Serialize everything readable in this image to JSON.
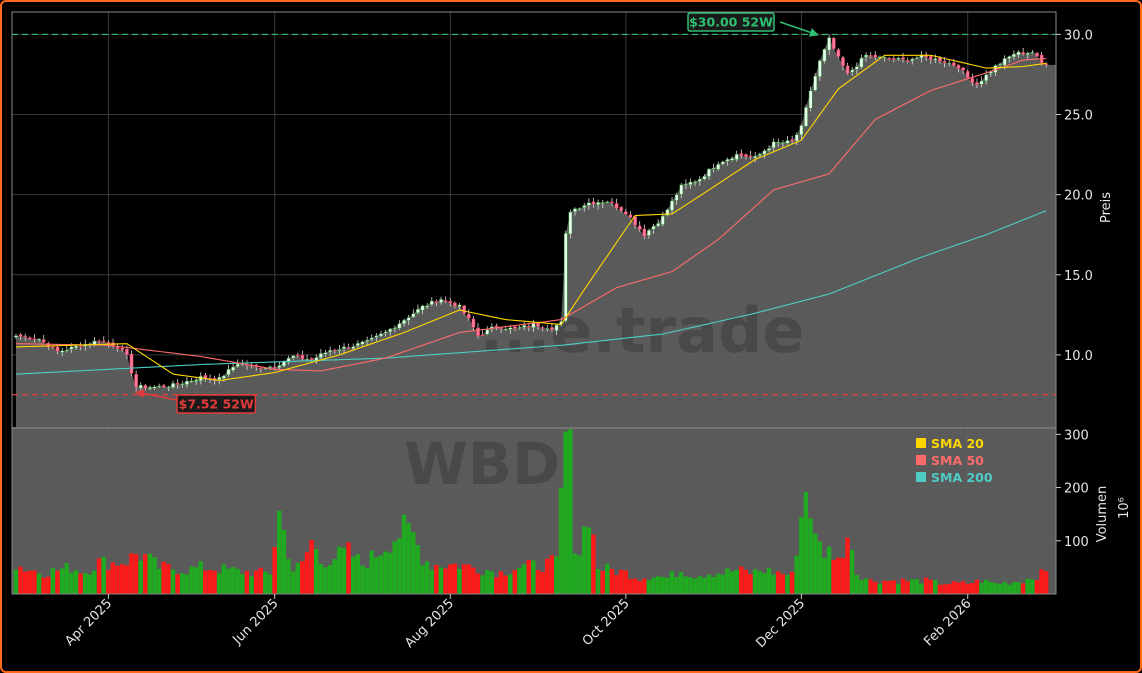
{
  "chart_data": {
    "type": "candlestick",
    "ticker": "WBD",
    "watermark_text": "WBD",
    "watermark_brand": "...e.trade",
    "price_axis": {
      "label": "Preis",
      "ylim": [
        5.5,
        31.4
      ],
      "ticks": [
        10.0,
        15.0,
        20.0,
        25.0,
        30.0
      ]
    },
    "volume_axis": {
      "label": "Volumen",
      "unit": "10⁶",
      "ylim": [
        0,
        310
      ],
      "ticks": [
        100,
        200,
        300
      ]
    },
    "x_axis": {
      "ticks": [
        "Apr 2025",
        "Jun 2025",
        "Aug 2025",
        "Oct 2025",
        "Dec 2025",
        "Feb 2026"
      ]
    },
    "grid": true,
    "legend": {
      "position": "top-right",
      "entries": [
        {
          "label": "SMA 20",
          "color": "#ffd700"
        },
        {
          "label": "SMA 50",
          "color": "#ff6b6b"
        },
        {
          "label": "SMA 200",
          "color": "#4ecdc4"
        }
      ]
    },
    "annotations": {
      "high_52w": {
        "label": "$30.00 52W",
        "value": 30.0,
        "color": "#2fbf71"
      },
      "low_52w": {
        "label": "$7.52 52W",
        "value": 7.52,
        "color": "#e23b3b"
      }
    },
    "colors": {
      "up": "#1faa1f",
      "down": "#ff1a1a",
      "area": "#5f5f5f",
      "background": "#000000"
    },
    "close_series": [
      {
        "i": 0,
        "v": 11.2
      },
      {
        "i": 5,
        "v": 11.0
      },
      {
        "i": 9,
        "v": 10.2
      },
      {
        "i": 14,
        "v": 10.6
      },
      {
        "i": 18,
        "v": 10.9
      },
      {
        "i": 22,
        "v": 10.5
      },
      {
        "i": 24,
        "v": 9.9
      },
      {
        "i": 26,
        "v": 8.0
      },
      {
        "i": 30,
        "v": 8.0
      },
      {
        "i": 34,
        "v": 8.1
      },
      {
        "i": 40,
        "v": 8.6
      },
      {
        "i": 44,
        "v": 8.5
      },
      {
        "i": 48,
        "v": 9.5
      },
      {
        "i": 52,
        "v": 9.2
      },
      {
        "i": 56,
        "v": 9.3
      },
      {
        "i": 60,
        "v": 9.9
      },
      {
        "i": 64,
        "v": 9.7
      },
      {
        "i": 68,
        "v": 10.3
      },
      {
        "i": 72,
        "v": 10.5
      },
      {
        "i": 76,
        "v": 10.8
      },
      {
        "i": 80,
        "v": 11.4
      },
      {
        "i": 84,
        "v": 12.2
      },
      {
        "i": 88,
        "v": 13.0
      },
      {
        "i": 92,
        "v": 13.5
      },
      {
        "i": 96,
        "v": 13.0
      },
      {
        "i": 98,
        "v": 12.2
      },
      {
        "i": 100,
        "v": 11.2
      },
      {
        "i": 104,
        "v": 11.8
      },
      {
        "i": 108,
        "v": 11.6
      },
      {
        "i": 112,
        "v": 11.9
      },
      {
        "i": 116,
        "v": 11.7
      },
      {
        "i": 118,
        "v": 12.0
      },
      {
        "i": 119,
        "v": 17.5
      },
      {
        "i": 120,
        "v": 19.0
      },
      {
        "i": 124,
        "v": 19.5
      },
      {
        "i": 128,
        "v": 19.6
      },
      {
        "i": 132,
        "v": 18.9
      },
      {
        "i": 136,
        "v": 17.5
      },
      {
        "i": 140,
        "v": 18.6
      },
      {
        "i": 144,
        "v": 20.5
      },
      {
        "i": 148,
        "v": 21.0
      },
      {
        "i": 152,
        "v": 22.0
      },
      {
        "i": 156,
        "v": 22.5
      },
      {
        "i": 160,
        "v": 22.3
      },
      {
        "i": 164,
        "v": 23.2
      },
      {
        "i": 168,
        "v": 23.3
      },
      {
        "i": 170,
        "v": 24.2
      },
      {
        "i": 172,
        "v": 26.5
      },
      {
        "i": 174,
        "v": 28.3
      },
      {
        "i": 176,
        "v": 29.7
      },
      {
        "i": 178,
        "v": 28.5
      },
      {
        "i": 180,
        "v": 27.5
      },
      {
        "i": 184,
        "v": 28.7
      },
      {
        "i": 188,
        "v": 28.5
      },
      {
        "i": 192,
        "v": 28.4
      },
      {
        "i": 196,
        "v": 28.6
      },
      {
        "i": 200,
        "v": 28.4
      },
      {
        "i": 204,
        "v": 28.0
      },
      {
        "i": 206,
        "v": 27.3
      },
      {
        "i": 208,
        "v": 26.9
      },
      {
        "i": 212,
        "v": 28.0
      },
      {
        "i": 216,
        "v": 28.8
      },
      {
        "i": 220,
        "v": 28.9
      },
      {
        "i": 222,
        "v": 28.2
      },
      {
        "i": 223,
        "v": 28.2
      }
    ],
    "sma20": [
      {
        "i": 0,
        "v": 10.5
      },
      {
        "i": 24,
        "v": 10.7
      },
      {
        "i": 34,
        "v": 8.8
      },
      {
        "i": 44,
        "v": 8.4
      },
      {
        "i": 56,
        "v": 8.9
      },
      {
        "i": 70,
        "v": 10.0
      },
      {
        "i": 84,
        "v": 11.4
      },
      {
        "i": 96,
        "v": 12.8
      },
      {
        "i": 106,
        "v": 12.2
      },
      {
        "i": 118,
        "v": 11.9
      },
      {
        "i": 124,
        "v": 14.5
      },
      {
        "i": 134,
        "v": 18.7
      },
      {
        "i": 142,
        "v": 18.8
      },
      {
        "i": 150,
        "v": 20.3
      },
      {
        "i": 160,
        "v": 22.2
      },
      {
        "i": 170,
        "v": 23.4
      },
      {
        "i": 178,
        "v": 26.6
      },
      {
        "i": 188,
        "v": 28.7
      },
      {
        "i": 198,
        "v": 28.7
      },
      {
        "i": 210,
        "v": 27.9
      },
      {
        "i": 218,
        "v": 28.0
      },
      {
        "i": 223,
        "v": 28.2
      }
    ],
    "sma50": [
      {
        "i": 0,
        "v": 10.7
      },
      {
        "i": 20,
        "v": 10.6
      },
      {
        "i": 40,
        "v": 9.9
      },
      {
        "i": 56,
        "v": 9.1
      },
      {
        "i": 66,
        "v": 9.0
      },
      {
        "i": 80,
        "v": 9.8
      },
      {
        "i": 96,
        "v": 11.4
      },
      {
        "i": 118,
        "v": 12.2
      },
      {
        "i": 130,
        "v": 14.2
      },
      {
        "i": 142,
        "v": 15.2
      },
      {
        "i": 152,
        "v": 17.2
      },
      {
        "i": 164,
        "v": 20.3
      },
      {
        "i": 176,
        "v": 21.3
      },
      {
        "i": 186,
        "v": 24.7
      },
      {
        "i": 198,
        "v": 26.5
      },
      {
        "i": 210,
        "v": 27.6
      },
      {
        "i": 218,
        "v": 28.4
      },
      {
        "i": 223,
        "v": 28.5
      }
    ],
    "sma200": [
      {
        "i": 0,
        "v": 8.8
      },
      {
        "i": 40,
        "v": 9.4
      },
      {
        "i": 80,
        "v": 9.8
      },
      {
        "i": 118,
        "v": 10.6
      },
      {
        "i": 140,
        "v": 11.3
      },
      {
        "i": 160,
        "v": 12.6
      },
      {
        "i": 176,
        "v": 13.8
      },
      {
        "i": 196,
        "v": 16.1
      },
      {
        "i": 210,
        "v": 17.5
      },
      {
        "i": 223,
        "v": 19.0
      }
    ],
    "volume_series": [
      {
        "i": 0,
        "v": 55
      },
      {
        "i": 2,
        "v": 48
      },
      {
        "i": 6,
        "v": 40
      },
      {
        "i": 9,
        "v": 45
      },
      {
        "i": 12,
        "v": 50
      },
      {
        "i": 15,
        "v": 42
      },
      {
        "i": 18,
        "v": 60
      },
      {
        "i": 21,
        "v": 58
      },
      {
        "i": 24,
        "v": 62
      },
      {
        "i": 26,
        "v": 75
      },
      {
        "i": 28,
        "v": 70
      },
      {
        "i": 31,
        "v": 50
      },
      {
        "i": 34,
        "v": 48
      },
      {
        "i": 37,
        "v": 45
      },
      {
        "i": 40,
        "v": 50
      },
      {
        "i": 43,
        "v": 48
      },
      {
        "i": 46,
        "v": 45
      },
      {
        "i": 49,
        "v": 42
      },
      {
        "i": 52,
        "v": 40
      },
      {
        "i": 55,
        "v": 40
      },
      {
        "i": 57,
        "v": 152
      },
      {
        "i": 60,
        "v": 45
      },
      {
        "i": 62,
        "v": 55
      },
      {
        "i": 64,
        "v": 100
      },
      {
        "i": 66,
        "v": 60
      },
      {
        "i": 69,
        "v": 70
      },
      {
        "i": 72,
        "v": 80
      },
      {
        "i": 75,
        "v": 55
      },
      {
        "i": 78,
        "v": 75
      },
      {
        "i": 81,
        "v": 100
      },
      {
        "i": 84,
        "v": 120
      },
      {
        "i": 86,
        "v": 110
      },
      {
        "i": 88,
        "v": 70
      },
      {
        "i": 90,
        "v": 55
      },
      {
        "i": 93,
        "v": 55
      },
      {
        "i": 96,
        "v": 55
      },
      {
        "i": 99,
        "v": 50
      },
      {
        "i": 102,
        "v": 45
      },
      {
        "i": 105,
        "v": 40
      },
      {
        "i": 108,
        "v": 50
      },
      {
        "i": 111,
        "v": 52
      },
      {
        "i": 114,
        "v": 55
      },
      {
        "i": 117,
        "v": 60
      },
      {
        "i": 119,
        "v": 295
      },
      {
        "i": 120,
        "v": 285
      },
      {
        "i": 121,
        "v": 100
      },
      {
        "i": 122,
        "v": 80
      },
      {
        "i": 124,
        "v": 160
      },
      {
        "i": 126,
        "v": 50
      },
      {
        "i": 129,
        "v": 45
      },
      {
        "i": 132,
        "v": 40
      },
      {
        "i": 135,
        "v": 30
      },
      {
        "i": 138,
        "v": 35
      },
      {
        "i": 141,
        "v": 30
      },
      {
        "i": 144,
        "v": 45
      },
      {
        "i": 147,
        "v": 35
      },
      {
        "i": 150,
        "v": 40
      },
      {
        "i": 153,
        "v": 40
      },
      {
        "i": 156,
        "v": 45
      },
      {
        "i": 159,
        "v": 40
      },
      {
        "i": 162,
        "v": 45
      },
      {
        "i": 165,
        "v": 40
      },
      {
        "i": 168,
        "v": 35
      },
      {
        "i": 171,
        "v": 200
      },
      {
        "i": 172,
        "v": 165
      },
      {
        "i": 173,
        "v": 100
      },
      {
        "i": 175,
        "v": 80
      },
      {
        "i": 177,
        "v": 80
      },
      {
        "i": 179,
        "v": 60
      },
      {
        "i": 180,
        "v": 135
      },
      {
        "i": 182,
        "v": 40
      },
      {
        "i": 185,
        "v": 25
      },
      {
        "i": 188,
        "v": 25
      },
      {
        "i": 191,
        "v": 25
      },
      {
        "i": 194,
        "v": 25
      },
      {
        "i": 197,
        "v": 25
      },
      {
        "i": 200,
        "v": 20
      },
      {
        "i": 203,
        "v": 20
      },
      {
        "i": 206,
        "v": 20
      },
      {
        "i": 209,
        "v": 25
      },
      {
        "i": 212,
        "v": 20
      },
      {
        "i": 215,
        "v": 22
      },
      {
        "i": 218,
        "v": 25
      },
      {
        "i": 221,
        "v": 35
      },
      {
        "i": 223,
        "v": 40
      }
    ]
  }
}
